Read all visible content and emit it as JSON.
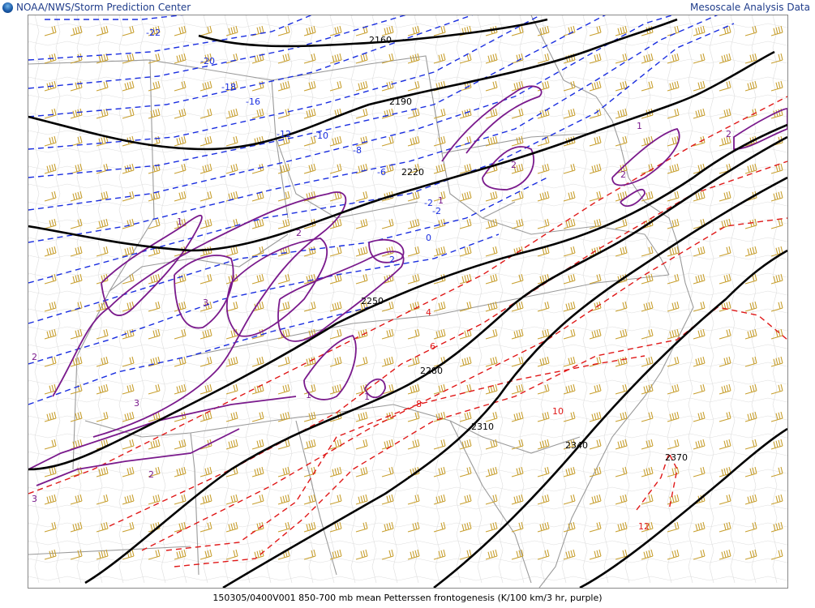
{
  "header": {
    "left_title": "NOAA/NWS/Storm Prediction Center",
    "right_title": "Mesoscale Analysis Data"
  },
  "footer": {
    "caption": "150305/0400V001 850-700 mb mean Petterssen frontogenesis (K/100 km/3 hr, purple)"
  },
  "colors": {
    "height_contours": "#000000",
    "cold_isotherms": "#1a2ee0",
    "warm_isotherms": "#e01818",
    "frontogenesis": "#7a1a8c",
    "wind_barbs": "#c8a030",
    "state_borders": "#999999",
    "county_borders": "#d8d8d8"
  },
  "map": {
    "height_labels": [
      "2160",
      "2190",
      "2220",
      "2250",
      "2280",
      "2310",
      "2340",
      "2370"
    ],
    "cold_isotherm_labels": [
      "-22",
      "-20",
      "-18",
      "-16",
      "-12",
      "-10",
      "-8",
      "-6",
      "-2",
      "-2",
      "0",
      "2"
    ],
    "warm_isotherm_labels": [
      "4",
      "6",
      "8",
      "10",
      "12"
    ],
    "frontogenesis_labels": [
      "1",
      "2",
      "3",
      "2",
      "2",
      "1",
      "3",
      "2",
      "1",
      "2",
      "1",
      "3",
      "2",
      "1"
    ]
  }
}
